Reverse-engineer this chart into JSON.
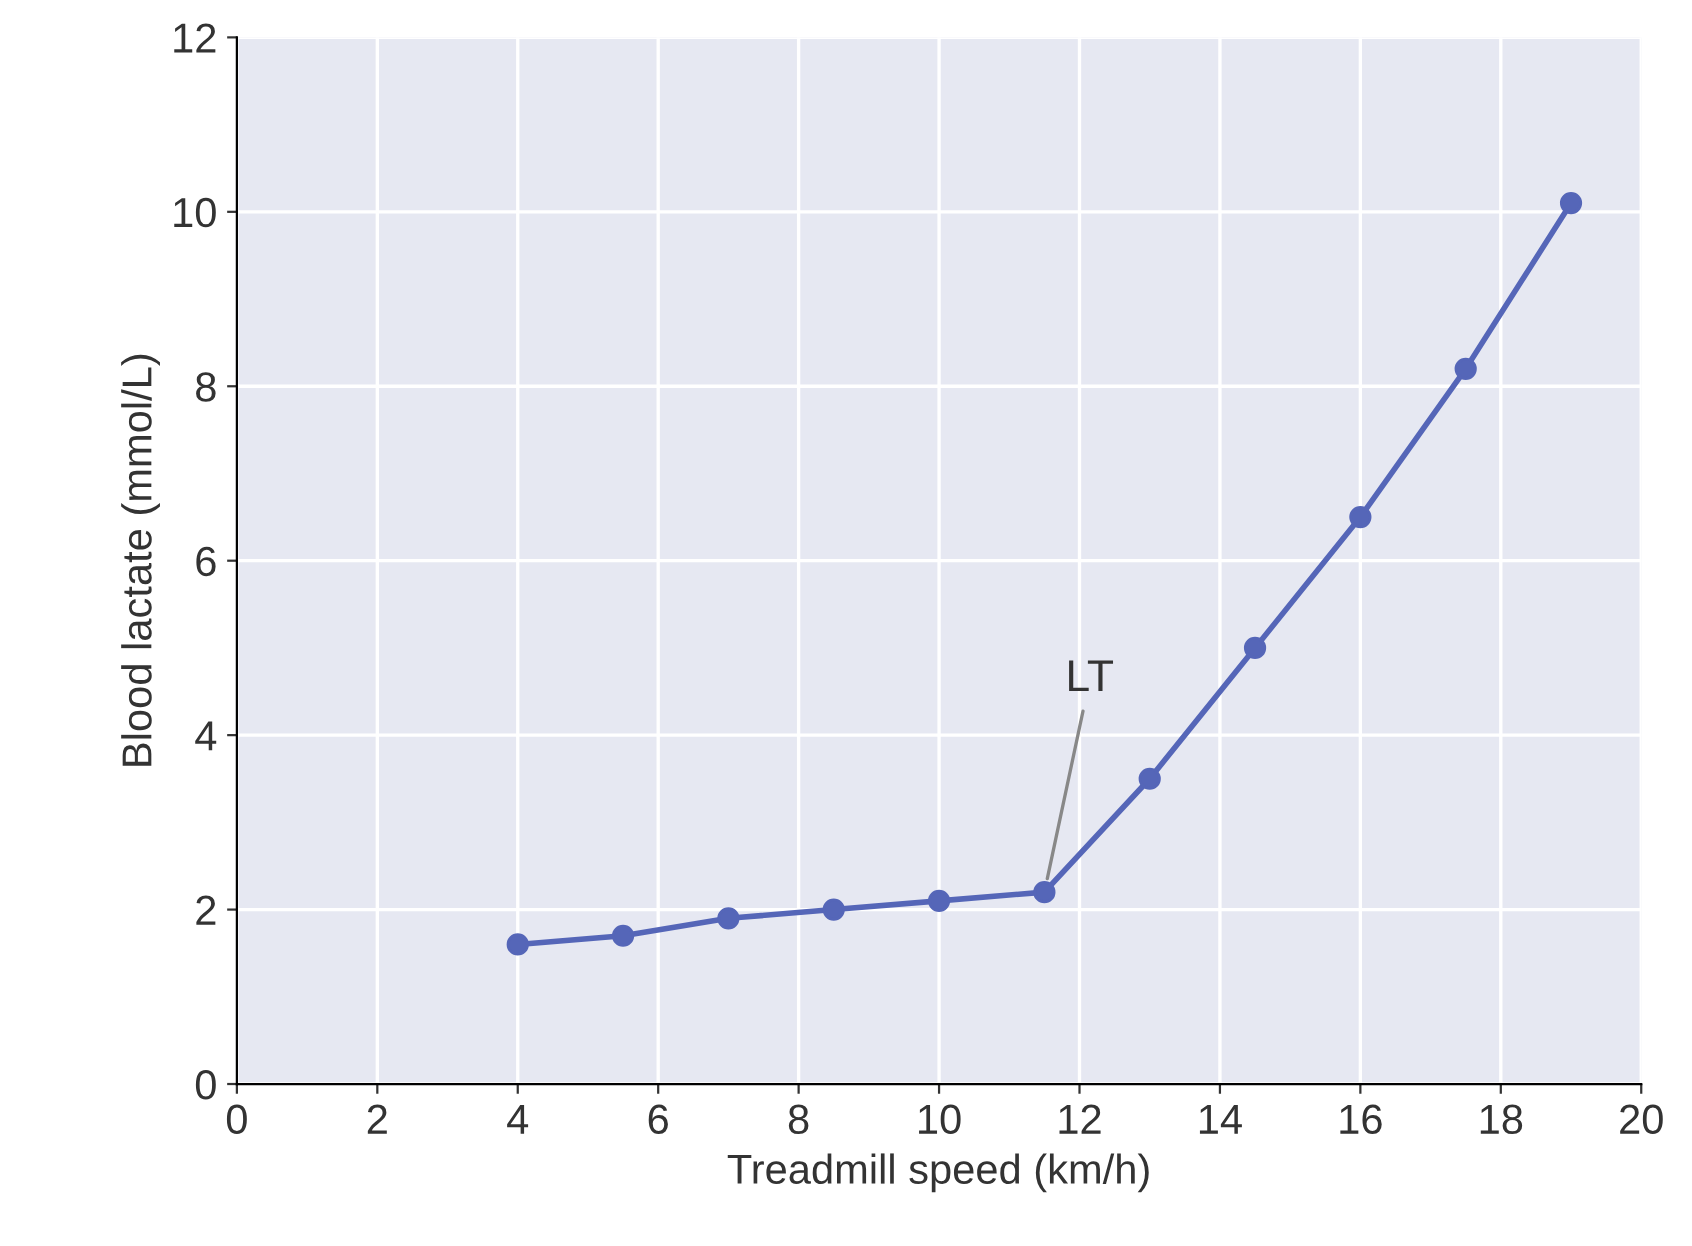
{
  "chart_data": {
    "type": "line",
    "xlabel": "Treadmill speed (km/h)",
    "ylabel": "Blood lactate (mmol/L)",
    "x": [
      4,
      5.5,
      7,
      8.5,
      10,
      11.5,
      13,
      14.5,
      16,
      17.5,
      19
    ],
    "series": [
      {
        "color": "#5566b8",
        "values": [
          1.6,
          1.7,
          1.9,
          2.0,
          2.1,
          2.2,
          3.5,
          5.0,
          6.5,
          8.2,
          10.1
        ]
      }
    ],
    "xlim": [
      0,
      20
    ],
    "xticks": [
      0,
      2,
      4,
      6,
      8,
      10,
      12,
      14,
      16,
      18,
      20
    ],
    "ylim": [
      0,
      12
    ],
    "yticks": [
      0,
      2,
      4,
      6,
      8,
      10,
      12
    ],
    "grid": true,
    "marker": "circle",
    "line_style": "solid",
    "annotations": [
      {
        "text": "LT",
        "x": 11.5,
        "y": 2.2
      }
    ]
  }
}
